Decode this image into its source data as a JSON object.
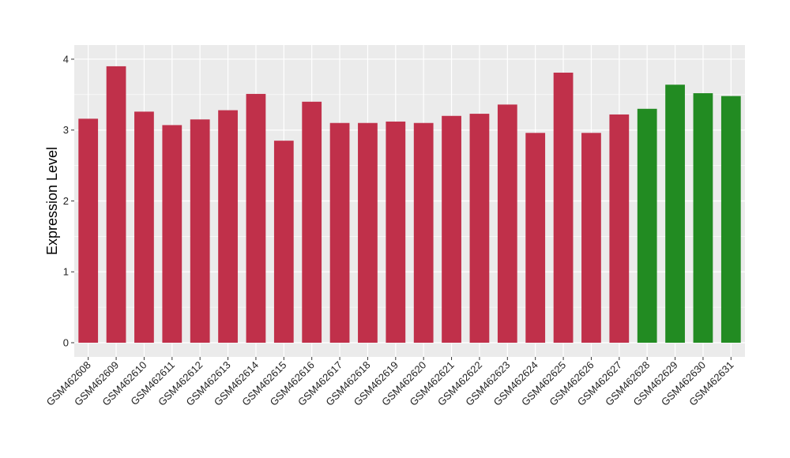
{
  "chart_data": {
    "type": "bar",
    "title": "",
    "xlabel": "",
    "ylabel": "Expression Level",
    "ylim": [
      0,
      4.2
    ],
    "yticks": [
      0,
      1,
      2,
      3,
      4
    ],
    "grid": true,
    "categories": [
      "GSM462608",
      "GSM462609",
      "GSM462610",
      "GSM462611",
      "GSM462612",
      "GSM462613",
      "GSM462614",
      "GSM462615",
      "GSM462616",
      "GSM462617",
      "GSM462618",
      "GSM462619",
      "GSM462620",
      "GSM462621",
      "GSM462622",
      "GSM462623",
      "GSM462624",
      "GSM462625",
      "GSM462626",
      "GSM462627",
      "GSM462628",
      "GSM462629",
      "GSM462630",
      "GSM462631"
    ],
    "values": [
      3.16,
      3.9,
      3.26,
      3.07,
      3.15,
      3.28,
      3.51,
      2.85,
      3.4,
      3.1,
      3.1,
      3.12,
      3.1,
      3.2,
      3.23,
      3.36,
      2.96,
      3.81,
      2.96,
      3.22,
      3.3,
      3.64,
      3.52,
      3.48
    ],
    "bar_colors": [
      "#c0304a",
      "#c0304a",
      "#c0304a",
      "#c0304a",
      "#c0304a",
      "#c0304a",
      "#c0304a",
      "#c0304a",
      "#c0304a",
      "#c0304a",
      "#c0304a",
      "#c0304a",
      "#c0304a",
      "#c0304a",
      "#c0304a",
      "#c0304a",
      "#c0304a",
      "#c0304a",
      "#c0304a",
      "#c0304a",
      "#228b22",
      "#228b22",
      "#228b22",
      "#228b22"
    ],
    "panel_background": "#ebebeb",
    "grid_color": "#ffffff"
  }
}
